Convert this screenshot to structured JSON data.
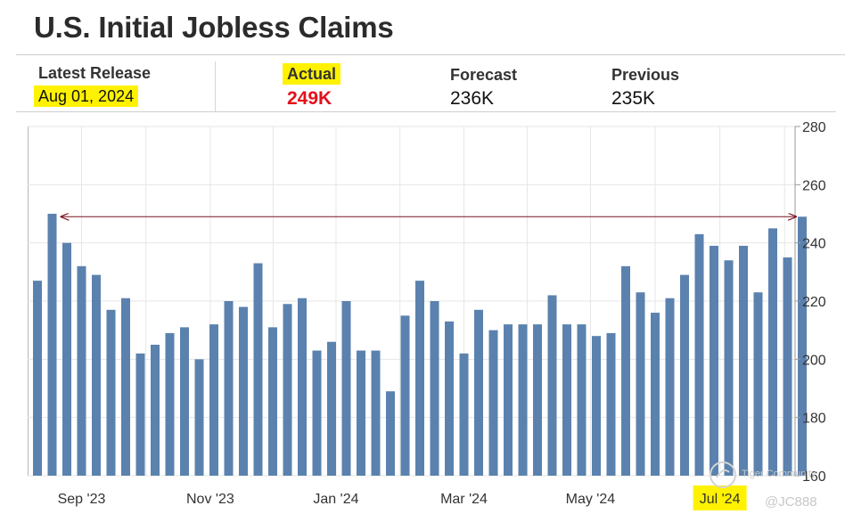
{
  "title": "U.S. Initial Jobless Claims",
  "stats": {
    "latest_release": {
      "label": "Latest Release",
      "value": "Aug 01, 2024"
    },
    "actual": {
      "label": "Actual",
      "value": "249K"
    },
    "forecast": {
      "label": "Forecast",
      "value": "236K"
    },
    "previous": {
      "label": "Previous",
      "value": "235K"
    }
  },
  "colors": {
    "bar": "#5b82ae",
    "highlight": "#fff200",
    "actual": "#e3101b",
    "arrow": "#7a1020",
    "grid": "#e6e6e6"
  },
  "watermark": {
    "handle": "@JC888",
    "brand": "Tiger Community"
  },
  "chart_data": {
    "type": "bar",
    "ylim": [
      160,
      280
    ],
    "y_ticks": [
      160,
      180,
      200,
      220,
      240,
      260,
      280
    ],
    "y_axis_side": "right",
    "x_tick_labels": [
      "Sep '23",
      "Nov '23",
      "Jan '24",
      "Mar '24",
      "May '24",
      "Jul '24"
    ],
    "highlighted_tick": "Jul '24",
    "values": [
      227,
      250,
      240,
      232,
      229,
      217,
      221,
      202,
      205,
      209,
      211,
      200,
      212,
      220,
      218,
      233,
      211,
      219,
      221,
      203,
      206,
      220,
      203,
      203,
      189,
      215,
      227,
      220,
      213,
      202,
      217,
      210,
      212,
      212,
      212,
      222,
      212,
      212,
      208,
      209,
      232,
      223,
      216,
      221,
      229,
      243,
      239,
      234,
      239,
      223,
      245,
      235,
      249
    ],
    "annotation": "double-headed arrow spanning from the second bar to the last bar at level 249",
    "arrow_y": 249,
    "grid": true
  }
}
